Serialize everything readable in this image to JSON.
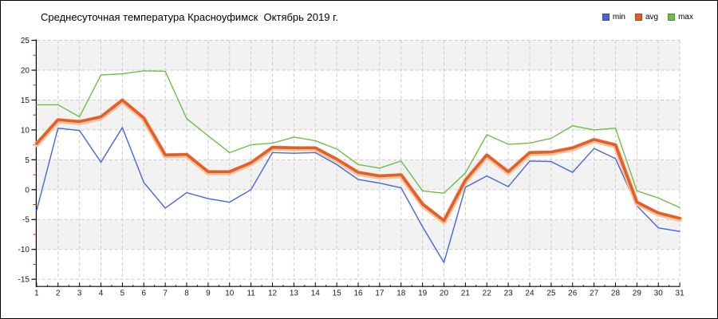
{
  "chart_data": {
    "type": "line",
    "title": "Среднесуточная температура Красноуфимск  Октябрь 2019 г.",
    "x": [
      1,
      2,
      3,
      4,
      5,
      6,
      7,
      8,
      9,
      10,
      11,
      12,
      13,
      14,
      15,
      16,
      17,
      18,
      19,
      20,
      21,
      22,
      23,
      24,
      25,
      26,
      27,
      28,
      29,
      30,
      31
    ],
    "ylim": [
      -15,
      25
    ],
    "y_ticks": [
      25,
      20,
      15,
      10,
      5,
      0,
      -5,
      -10,
      -15
    ],
    "grid": true,
    "legend_position": "top-right",
    "series": [
      {
        "name": "min",
        "color": "#4565dd",
        "width": 1.4,
        "values": [
          -3.5,
          10.3,
          9.9,
          4.6,
          10.4,
          1.2,
          -3.1,
          -0.5,
          -1.5,
          -2.1,
          0.0,
          6.2,
          6.1,
          6.2,
          4.2,
          1.7,
          1.1,
          0.3,
          -6.2,
          -12.2,
          0.4,
          2.3,
          0.5,
          4.8,
          4.7,
          2.9,
          6.9,
          5.2,
          -2.7,
          -6.4,
          -7.0
        ]
      },
      {
        "name": "avg",
        "color": "#e25f28",
        "width": 3.6,
        "halo": "#f6c3a0",
        "values": [
          7.7,
          11.7,
          11.4,
          12.2,
          15.0,
          12.0,
          5.8,
          5.9,
          3.0,
          3.0,
          4.5,
          7.1,
          7.0,
          7.0,
          5.1,
          2.9,
          2.3,
          2.5,
          -2.4,
          -5.2,
          1.6,
          5.8,
          3.0,
          6.2,
          6.3,
          7.0,
          8.4,
          7.5,
          -2.1,
          -3.9,
          -4.8
        ]
      },
      {
        "name": "max",
        "color": "#6dbf48",
        "width": 1.4,
        "values": [
          14.2,
          14.2,
          12.2,
          19.2,
          19.4,
          19.9,
          19.8,
          11.9,
          9.0,
          6.2,
          7.5,
          7.8,
          8.8,
          8.2,
          6.8,
          4.2,
          3.6,
          4.8,
          -0.2,
          -0.6,
          2.8,
          9.2,
          7.6,
          7.8,
          8.6,
          10.7,
          10.0,
          10.3,
          -0.2,
          -1.4,
          -3.0
        ]
      }
    ]
  },
  "colors": {
    "band": "#f2f2f2",
    "gridline": "#cbcbcb",
    "axis": "#000000",
    "minor_tick": "#cc2222",
    "tick_label": "#1a1a1a"
  }
}
